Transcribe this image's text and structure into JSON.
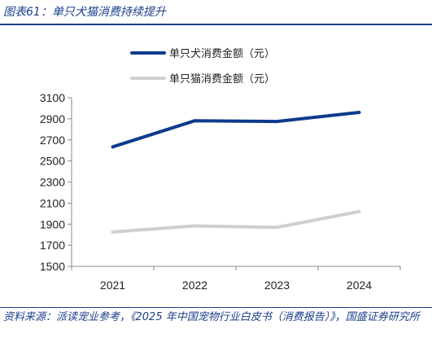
{
  "figure": {
    "title": "图表61：单只犬猫消费持续提升",
    "source": "资料来源：派读宠业参考，《2025 年中国宠物行业白皮书（消费报告）》，国盛证券研究所"
  },
  "colors": {
    "series_dog": "#0d3a8c",
    "series_cat": "#cfcfcf",
    "accent": "#1a3f8a"
  },
  "chart_data": {
    "type": "line",
    "categories": [
      "2021",
      "2022",
      "2023",
      "2024"
    ],
    "series": [
      {
        "name": "单只犬消费金额（元）",
        "values": [
          2634,
          2882,
          2875,
          2961
        ]
      },
      {
        "name": "单只猫消费金额（元）",
        "values": [
          1826,
          1883,
          1870,
          2020
        ]
      }
    ],
    "y_ticks": [
      "3100",
      "2900",
      "2700",
      "2500",
      "2300",
      "2100",
      "1900",
      "1700",
      "1500"
    ],
    "ylim": [
      1500,
      3100
    ],
    "grid": false,
    "legend_position": "top"
  }
}
